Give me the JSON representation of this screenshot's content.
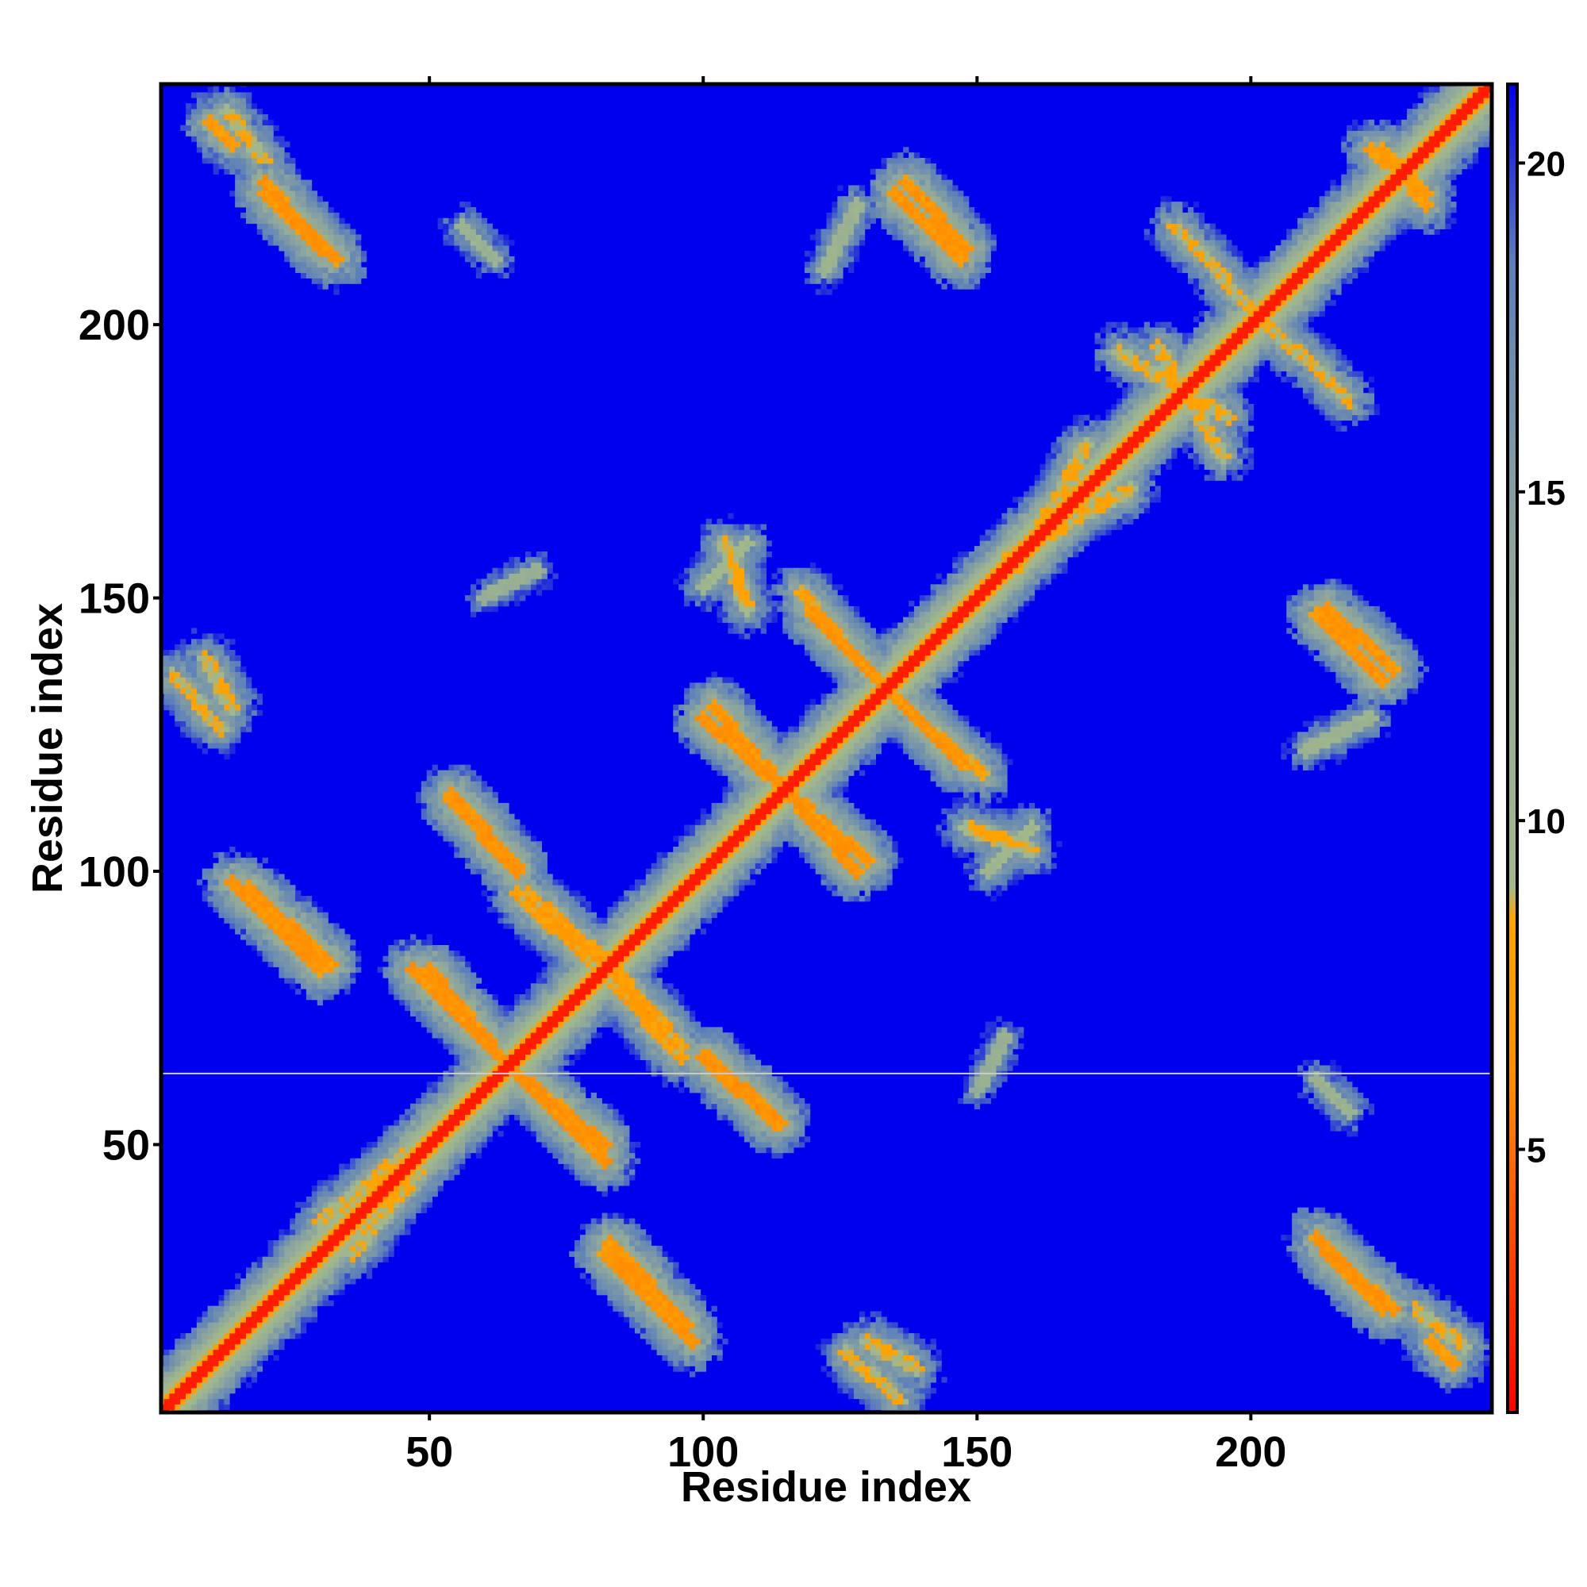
{
  "chart_data": {
    "type": "heatmap",
    "title": "",
    "xlabel": "Residue index",
    "ylabel": "Residue index",
    "xlim": [
      1,
      244
    ],
    "ylim": [
      1,
      244
    ],
    "x_ticks": [
      50,
      100,
      150,
      200
    ],
    "y_ticks": [
      50,
      100,
      150,
      200
    ],
    "colorbar": {
      "ticks": [
        5,
        10,
        15,
        20
      ],
      "range": [
        1,
        21.2
      ],
      "stops": [
        {
          "value": 1,
          "color": "#ff0000"
        },
        {
          "value": 6,
          "color": "#ff8c00"
        },
        {
          "value": 8.5,
          "color": "#ffa500"
        },
        {
          "value": 9,
          "color": "#a3b98a"
        },
        {
          "value": 14,
          "color": "#8fa79c"
        },
        {
          "value": 18.5,
          "color": "#5b7fba"
        },
        {
          "value": 21.2,
          "color": "#0000ee"
        }
      ]
    },
    "background_value": 21,
    "background_color": "#0000ee",
    "diagonal": {
      "value": 2,
      "half_width_residues": 4
    },
    "contact_features_note": "",
    "features": [
      {
        "kind": "anti",
        "x1": 10,
        "y1": 237,
        "x2": 14,
        "y2": 233,
        "value": 7
      },
      {
        "kind": "anti",
        "x1": 20,
        "y1": 226,
        "x2": 30,
        "y2": 214,
        "value": 6
      },
      {
        "kind": "anti",
        "x1": 137,
        "y1": 226,
        "x2": 148,
        "y2": 214,
        "value": 6
      },
      {
        "kind": "anti",
        "x1": 212,
        "y1": 147,
        "x2": 224,
        "y2": 135,
        "value": 6
      },
      {
        "kind": "anti",
        "x1": 212,
        "y1": 33,
        "x2": 224,
        "y2": 20,
        "value": 6
      },
      {
        "kind": "anti",
        "x1": 14,
        "y1": 98,
        "x2": 30,
        "y2": 82,
        "value": 6
      },
      {
        "kind": "anti",
        "x1": 54,
        "y1": 114,
        "x2": 66,
        "y2": 101,
        "value": 6
      },
      {
        "kind": "anti",
        "x1": 47,
        "y1": 82,
        "x2": 63,
        "y2": 66,
        "value": 6
      },
      {
        "kind": "anti",
        "x1": 66,
        "y1": 63,
        "x2": 82,
        "y2": 50,
        "value": 6
      },
      {
        "kind": "anti",
        "x1": 83,
        "y1": 32,
        "x2": 97,
        "y2": 17,
        "value": 6
      },
      {
        "kind": "anti",
        "x1": 102,
        "y1": 130,
        "x2": 128,
        "y2": 100,
        "value": 6
      },
      {
        "kind": "anti",
        "x1": 100,
        "y1": 66,
        "x2": 113,
        "y2": 54,
        "value": 6
      },
      {
        "kind": "anti",
        "x1": 120,
        "y1": 147,
        "x2": 134,
        "y2": 133,
        "value": 6
      },
      {
        "kind": "anti",
        "x1": 140,
        "y1": 127,
        "x2": 151,
        "y2": 118,
        "value": 7
      },
      {
        "kind": "anti",
        "x1": 68,
        "y1": 96,
        "x2": 84,
        "y2": 82,
        "value": 7
      },
      {
        "kind": "anti",
        "x1": 84,
        "y1": 79,
        "x2": 96,
        "y2": 66,
        "value": 7
      },
      {
        "kind": "anti",
        "x1": 3,
        "y1": 136,
        "x2": 12,
        "y2": 126,
        "value": 8
      },
      {
        "kind": "anti",
        "x1": 224,
        "y1": 232,
        "x2": 232,
        "y2": 222,
        "value": 7
      },
      {
        "kind": "anti",
        "x1": 230,
        "y1": 20,
        "x2": 239,
        "y2": 13,
        "value": 8
      },
      {
        "kind": "anti",
        "x1": 130,
        "y1": 14,
        "x2": 139,
        "y2": 9,
        "value": 8
      },
      {
        "kind": "par",
        "x1": 48,
        "y1": 45,
        "x2": 36,
        "y2": 30,
        "value": 8
      },
      {
        "kind": "par",
        "x1": 156,
        "y1": 158,
        "x2": 178,
        "y2": 170,
        "value": 8
      },
      {
        "kind": "par",
        "x1": 176,
        "y1": 195,
        "x2": 196,
        "y2": 183,
        "value": 8
      },
      {
        "kind": "par",
        "x1": 186,
        "y1": 218,
        "x2": 203,
        "y2": 200,
        "value": 8
      },
      {
        "kind": "par",
        "x1": 148,
        "y1": 108,
        "x2": 160,
        "y2": 104,
        "value": 8
      },
      {
        "kind": "par",
        "x1": 60,
        "y1": 150,
        "x2": 70,
        "y2": 155,
        "value": 11
      },
      {
        "kind": "par",
        "x1": 100,
        "y1": 152,
        "x2": 108,
        "y2": 160,
        "value": 9
      },
      {
        "kind": "par",
        "x1": 210,
        "y1": 122,
        "x2": 222,
        "y2": 128,
        "value": 10
      },
      {
        "kind": "par",
        "x1": 212,
        "y1": 62,
        "x2": 218,
        "y2": 56,
        "value": 10
      }
    ],
    "artifact_line": {
      "y": 63,
      "color": "#cccccc"
    }
  }
}
